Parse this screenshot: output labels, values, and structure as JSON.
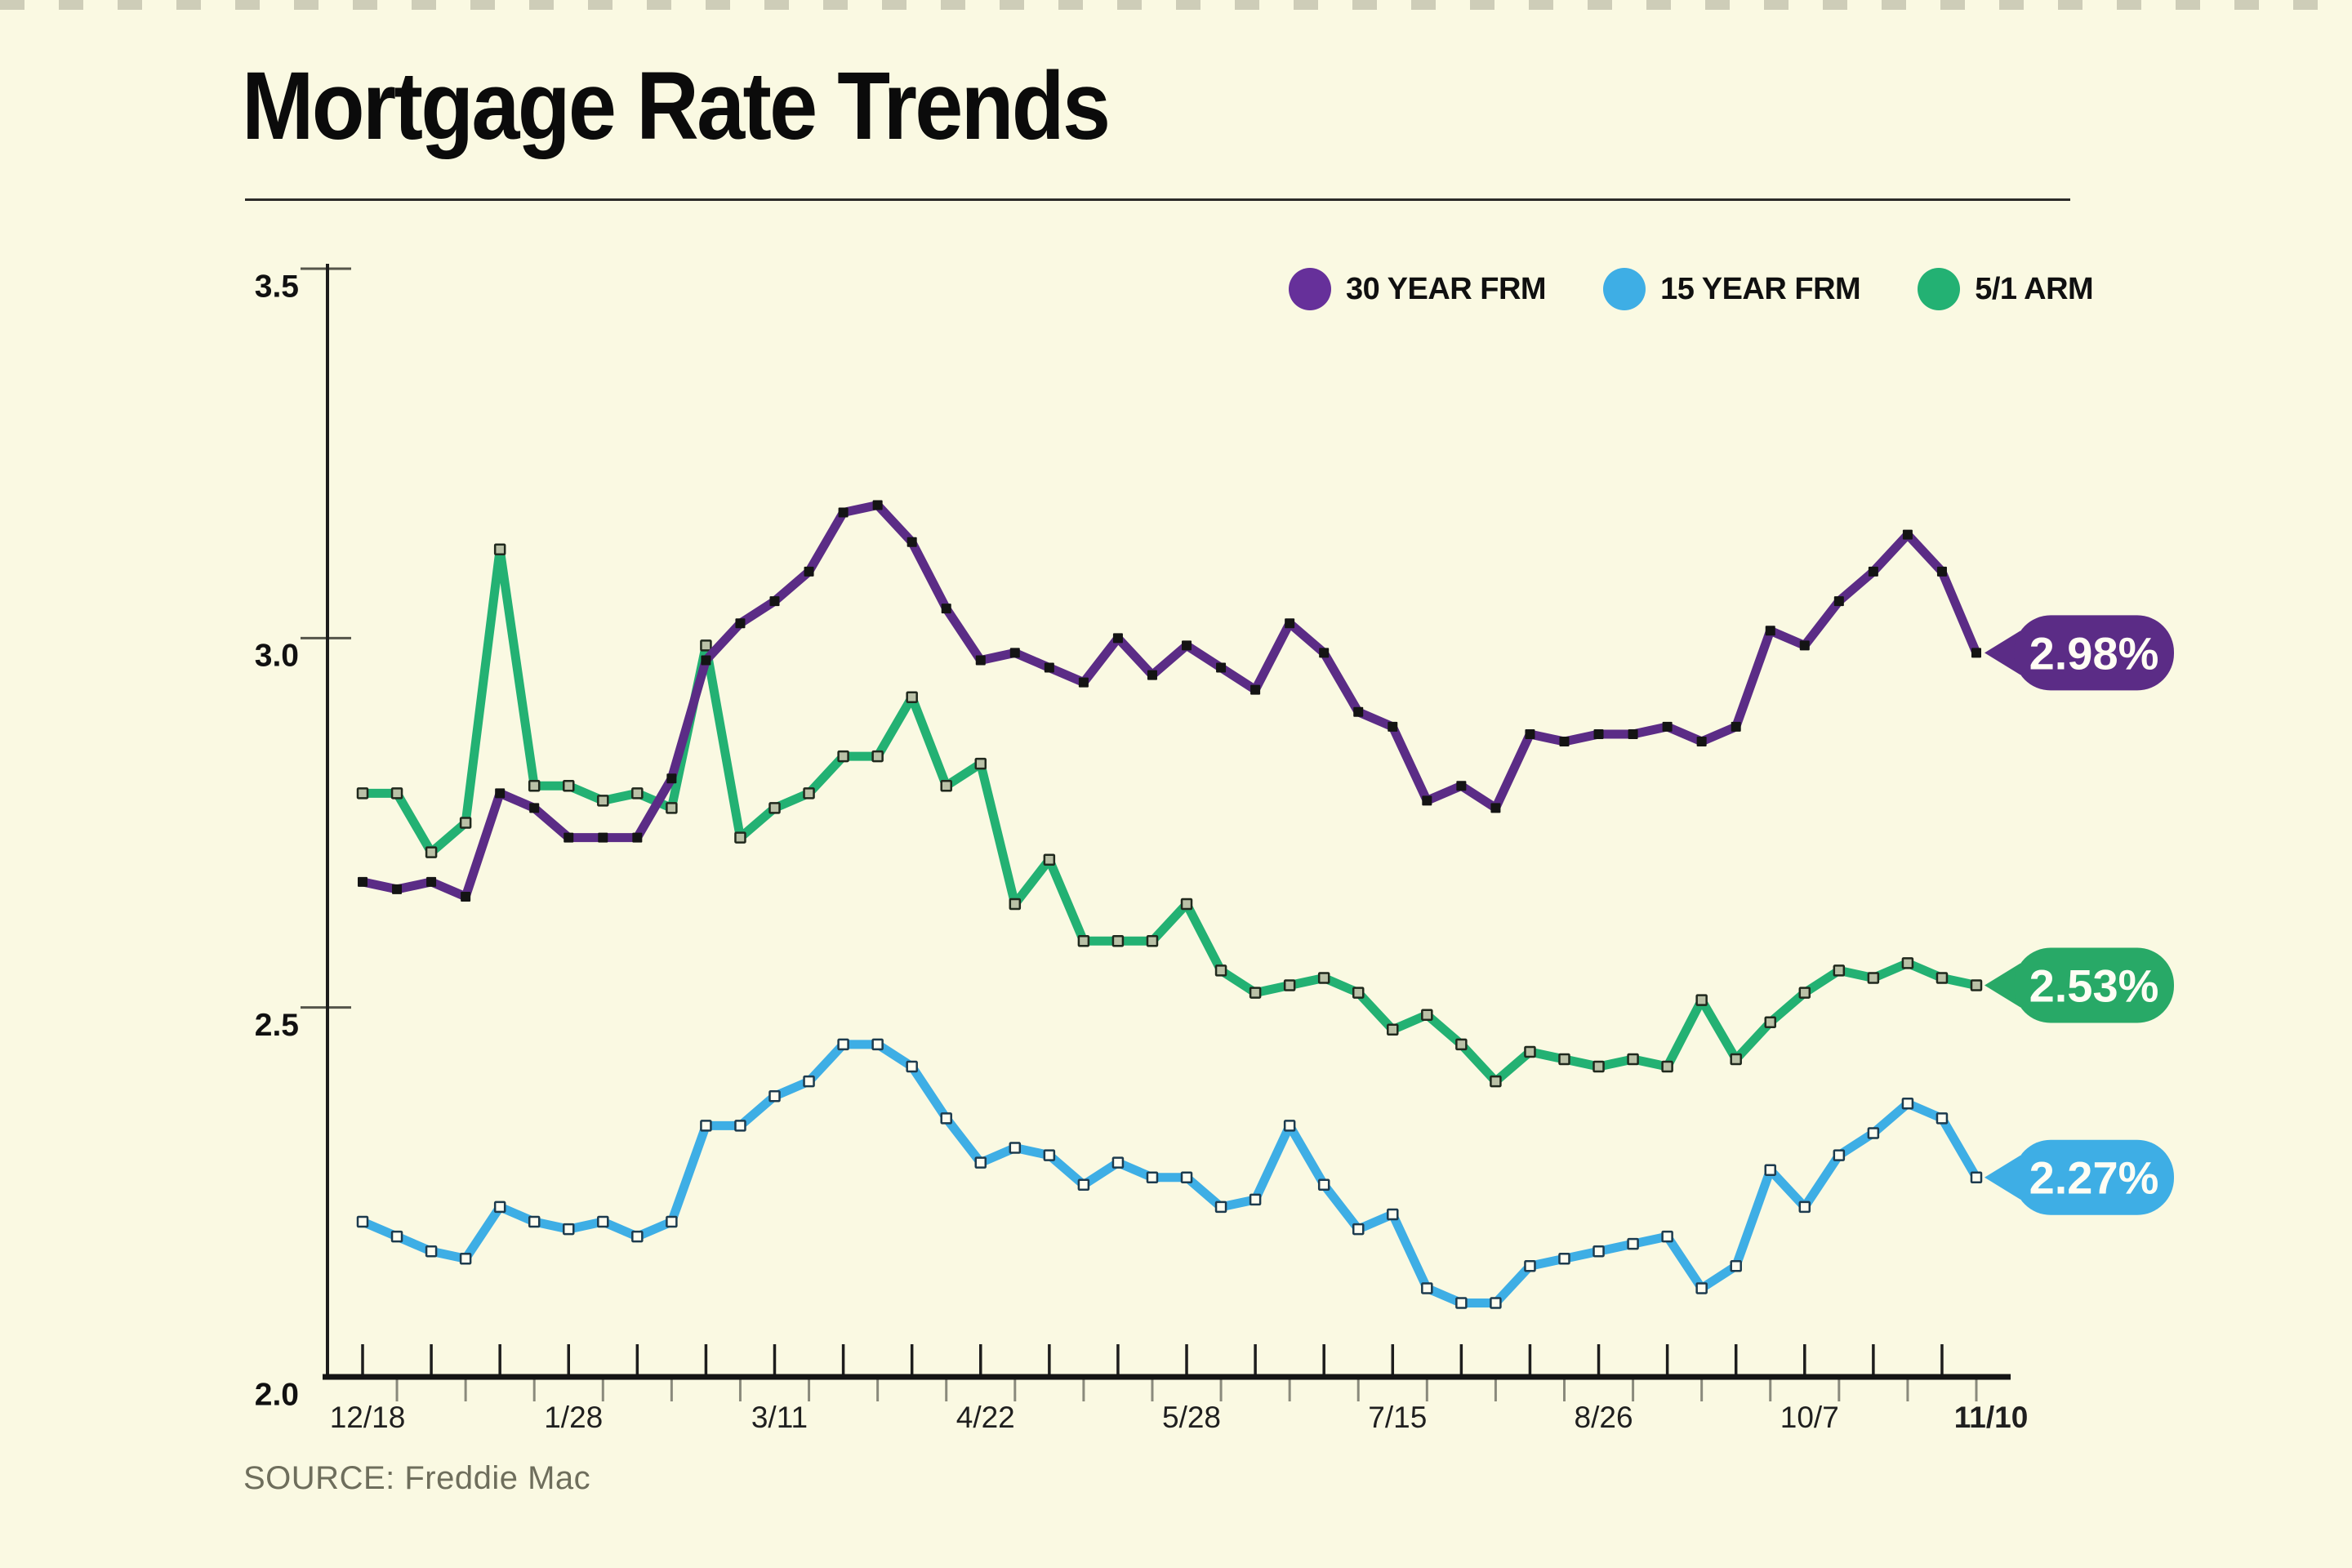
{
  "page": {
    "title": "Mortgage Rate Trends",
    "source": "SOURCE: Freddie Mac"
  },
  "colors": {
    "background": "#FAF9E2",
    "purple": "#5B2C86",
    "legend_purple": "#66309A",
    "blue": "#3EAEE5",
    "green": "#23B173",
    "pill_green": "#28A967",
    "axis": "#1D1D1D",
    "minor_tick": "#8A8A7C",
    "y_tick_line": "#55554B",
    "label_text": "#1F1F1F",
    "muted_text": "#6E6E5C",
    "pill_text": "#FFFDF4"
  },
  "legend": {
    "items": [
      {
        "label": "30 YEAR FRM",
        "color": "#66309A"
      },
      {
        "label": "15 YEAR FRM",
        "color": "#3EAEE5"
      },
      {
        "label": "5/1 ARM",
        "color": "#23B173"
      }
    ]
  },
  "chart_data": {
    "type": "line",
    "title": "Mortgage Rate Trends",
    "xlabel": "",
    "ylabel": "",
    "ylim": [
      2.0,
      3.5
    ],
    "grid": false,
    "legend_position": "top-right",
    "y_axis": [
      {
        "label": "3.5",
        "value": 3.5
      },
      {
        "label": "3.0",
        "value": 3.0
      },
      {
        "label": "2.5",
        "value": 2.5
      },
      {
        "label": "2.0",
        "value": 2.0
      }
    ],
    "x_tick_labels": [
      {
        "label": "12/18",
        "index": 0,
        "bold": false
      },
      {
        "label": "1/28",
        "index": 6,
        "bold": false
      },
      {
        "label": "3/11",
        "index": 12,
        "bold": false
      },
      {
        "label": "4/22",
        "index": 18,
        "bold": false
      },
      {
        "label": "5/28",
        "index": 24,
        "bold": false
      },
      {
        "label": "7/15",
        "index": 30,
        "bold": false
      },
      {
        "label": "8/26",
        "index": 36,
        "bold": false
      },
      {
        "label": "10/7",
        "index": 42,
        "bold": false
      },
      {
        "label": "11/10",
        "index": 47,
        "bold": true
      }
    ],
    "series": [
      {
        "name": "30 YEAR FRM",
        "color": "#5B2C86",
        "marker_fill": "#141414",
        "marker_stroke": "none",
        "values": [
          2.67,
          2.66,
          2.67,
          2.65,
          2.79,
          2.77,
          2.73,
          2.73,
          2.73,
          2.81,
          2.97,
          3.02,
          3.05,
          3.09,
          3.17,
          3.18,
          3.13,
          3.04,
          2.97,
          2.98,
          2.96,
          2.94,
          3.0,
          2.95,
          2.99,
          2.96,
          2.93,
          3.02,
          2.98,
          2.9,
          2.88,
          2.78,
          2.8,
          2.77,
          2.87,
          2.86,
          2.87,
          2.87,
          2.88,
          2.86,
          2.88,
          3.01,
          2.99,
          3.05,
          3.09,
          3.14,
          3.09,
          2.98
        ]
      },
      {
        "name": "15 YEAR FRM",
        "color": "#3EAEE5",
        "marker_fill": "#FFFDF0",
        "marker_stroke": "#1D3B4E",
        "values": [
          2.21,
          2.19,
          2.17,
          2.16,
          2.23,
          2.21,
          2.2,
          2.21,
          2.19,
          2.21,
          2.34,
          2.34,
          2.38,
          2.4,
          2.45,
          2.45,
          2.42,
          2.35,
          2.29,
          2.31,
          2.3,
          2.26,
          2.29,
          2.27,
          2.27,
          2.23,
          2.24,
          2.34,
          2.26,
          2.2,
          2.22,
          2.12,
          2.1,
          2.1,
          2.15,
          2.16,
          2.17,
          2.18,
          2.19,
          2.12,
          2.15,
          2.28,
          2.23,
          2.3,
          2.33,
          2.37,
          2.35,
          2.27
        ]
      },
      {
        "name": "5/1 ARM",
        "color": "#23B173",
        "marker_fill": "#BAC1A7",
        "marker_stroke": "#20291D",
        "values": [
          2.79,
          2.79,
          2.71,
          2.75,
          3.12,
          2.8,
          2.8,
          2.78,
          2.79,
          2.77,
          2.99,
          2.73,
          2.77,
          2.79,
          2.84,
          2.84,
          2.92,
          2.8,
          2.83,
          2.64,
          2.7,
          2.59,
          2.59,
          2.59,
          2.64,
          2.55,
          2.52,
          2.53,
          2.54,
          2.52,
          2.47,
          2.49,
          2.45,
          2.4,
          2.44,
          2.43,
          2.42,
          2.43,
          2.42,
          2.51,
          2.43,
          2.48,
          2.52,
          2.55,
          2.54,
          2.56,
          2.54,
          2.53
        ]
      }
    ],
    "end_labels": [
      {
        "text": "2.98%",
        "series": "30 YEAR FRM",
        "color": "#5B2C86"
      },
      {
        "text": "2.53%",
        "series": "5/1 ARM",
        "color": "#28A967"
      },
      {
        "text": "2.27%",
        "series": "15 YEAR FRM",
        "color": "#3EAEE5"
      }
    ]
  }
}
